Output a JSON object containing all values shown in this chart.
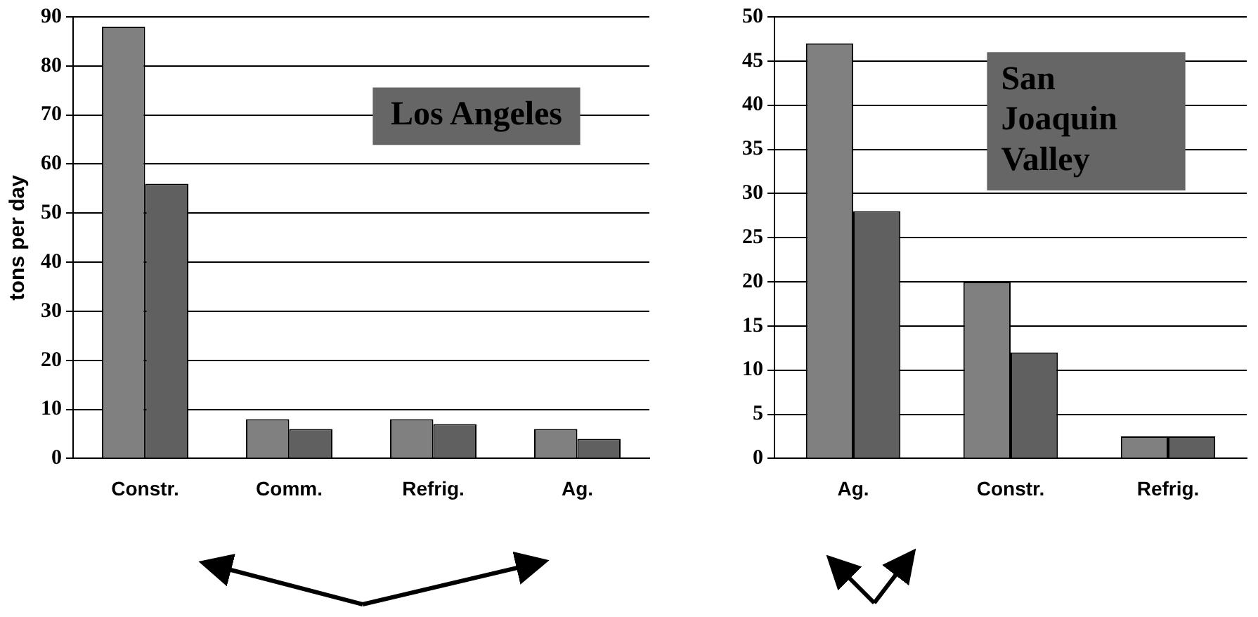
{
  "chart_data": [
    {
      "type": "bar",
      "ylabel": "tons per day",
      "categories": [
        "Constr.",
        "Comm.",
        "Refrig.",
        "Ag."
      ],
      "series": [
        {
          "color": "#808080",
          "values": [
            88,
            8,
            8,
            6
          ]
        },
        {
          "color": "#606060",
          "values": [
            56,
            6,
            7,
            4
          ]
        }
      ],
      "ylim": [
        0,
        90
      ],
      "yticks": [
        0,
        10,
        20,
        30,
        40,
        50,
        60,
        70,
        80,
        90
      ],
      "grid": "y",
      "annotations": [
        "Los Angeles"
      ]
    },
    {
      "type": "bar",
      "categories": [
        "Ag.",
        "Constr.",
        "Refrig."
      ],
      "series": [
        {
          "color": "#808080",
          "values": [
            47,
            20,
            2.5
          ]
        },
        {
          "color": "#606060",
          "values": [
            28,
            12,
            2.5
          ]
        }
      ],
      "ylim": [
        0,
        50
      ],
      "yticks": [
        0,
        5,
        10,
        15,
        20,
        25,
        30,
        35,
        40,
        45,
        50
      ],
      "grid": "y",
      "annotations": [
        "San Joaquin Valley"
      ]
    }
  ]
}
